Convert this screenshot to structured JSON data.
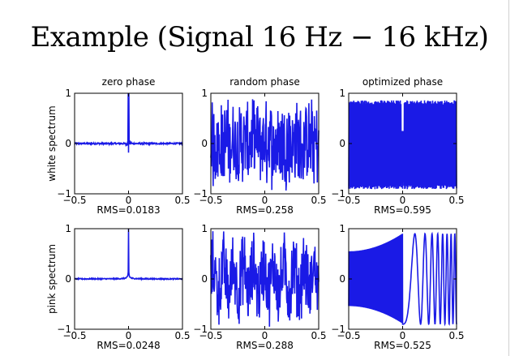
{
  "title": "Example (Signal 16 Hz − 16 kHz)",
  "colors": {
    "line": "#1a1ae6",
    "axes": "#000000",
    "background": "#ffffff"
  },
  "row_labels": [
    "white spectrum",
    "pink spectrum"
  ],
  "column_titles": [
    "zero phase",
    "random phase",
    "optimized phase"
  ],
  "chart_data": [
    {
      "type": "line",
      "row": "white spectrum",
      "column": "zero phase",
      "title": "zero phase",
      "ylabel": "white spectrum",
      "rms_label": "RMS=0.0183",
      "xlim": [
        -0.5,
        0.5
      ],
      "ylim": [
        -1,
        1
      ],
      "xticks": [
        "−0.5",
        "0",
        "0.5"
      ],
      "yticks": [
        "−1",
        "0",
        "1"
      ],
      "signal": "spike",
      "rms": 0.0183,
      "peak": 1.0,
      "trough": -0.18
    },
    {
      "type": "line",
      "row": "white spectrum",
      "column": "random phase",
      "title": "random phase",
      "rms_label": "RMS=0.258",
      "xlim": [
        -0.5,
        0.5
      ],
      "ylim": [
        -1,
        1
      ],
      "xticks": [
        "−0.5",
        "0",
        "0.5"
      ],
      "yticks": [
        "−1",
        "0",
        "1"
      ],
      "signal": "noise",
      "rms": 0.258
    },
    {
      "type": "line",
      "row": "white spectrum",
      "column": "optimized phase",
      "title": "optimized phase",
      "rms_label": "RMS=0.595",
      "xlim": [
        -0.5,
        0.5
      ],
      "ylim": [
        -1,
        1
      ],
      "xticks": [
        "−0.5",
        "0",
        "0.5"
      ],
      "yticks": [
        "−1",
        "0",
        "1"
      ],
      "signal": "chirp-flat",
      "rms": 0.595
    },
    {
      "type": "line",
      "row": "pink spectrum",
      "column": "zero phase",
      "ylabel": "pink spectrum",
      "rms_label": "RMS=0.0248",
      "xlim": [
        -0.5,
        0.5
      ],
      "ylim": [
        -1,
        1
      ],
      "xticks": [
        "−0.5",
        "0",
        "0.5"
      ],
      "yticks": [
        "−1",
        "0",
        "1"
      ],
      "signal": "spike-pink",
      "rms": 0.0248,
      "peak": 1.0
    },
    {
      "type": "line",
      "row": "pink spectrum",
      "column": "random phase",
      "rms_label": "RMS=0.288",
      "xlim": [
        -0.5,
        0.5
      ],
      "ylim": [
        -1,
        1
      ],
      "xticks": [
        "−0.5",
        "0",
        "0.5"
      ],
      "yticks": [
        "−1",
        "0",
        "1"
      ],
      "signal": "noise-pink",
      "rms": 0.288
    },
    {
      "type": "line",
      "row": "pink spectrum",
      "column": "optimized phase",
      "rms_label": "RMS=0.525",
      "xlim": [
        -0.5,
        0.5
      ],
      "ylim": [
        -1,
        1
      ],
      "xticks": [
        "−0.5",
        "0",
        "0.5"
      ],
      "yticks": [
        "−1",
        "0",
        "1"
      ],
      "signal": "chirp-pink",
      "rms": 0.525
    }
  ]
}
